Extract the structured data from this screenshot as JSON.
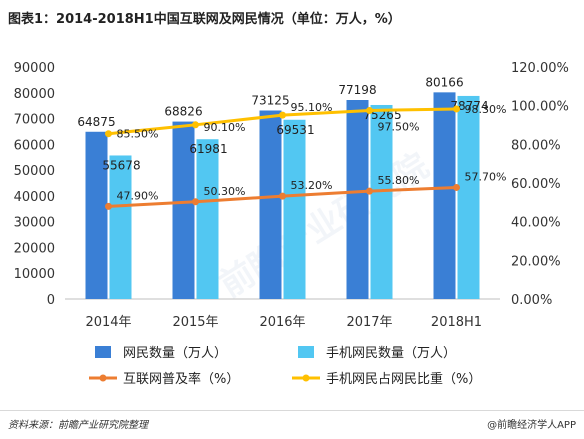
{
  "title": "图表1：2014-2018H1中国互联网及网民情况（单位：万人，%）",
  "source": "资料来源：前瞻产业研究院整理",
  "publisher": "@前瞻经济学人APP",
  "watermark": "前瞻产业研究院",
  "chart_data": {
    "type": "bar",
    "categories": [
      "2014年",
      "2015年",
      "2016年",
      "2017年",
      "2018H1"
    ],
    "left_axis": {
      "ylim": [
        0,
        90000
      ],
      "ticks": [
        "0",
        "10000",
        "20000",
        "30000",
        "40000",
        "50000",
        "60000",
        "70000",
        "80000",
        "90000"
      ]
    },
    "right_axis": {
      "ylim": [
        0,
        120
      ],
      "ticks": [
        "0.00%",
        "20.00%",
        "40.00%",
        "60.00%",
        "80.00%",
        "100.00%",
        "120.00%"
      ]
    },
    "bar_series": [
      {
        "name": "网民数量（万人）",
        "color": "#3a7fd5",
        "values": [
          64875,
          68826,
          73125,
          77198,
          80166
        ],
        "labels": [
          "64875",
          "68826",
          "73125",
          "77198",
          "80166"
        ]
      },
      {
        "name": "手机网民数量（万人）",
        "color": "#52c7f2",
        "values": [
          55678,
          61981,
          69531,
          75265,
          78774
        ],
        "labels": [
          "55678",
          "61981",
          "69531",
          "75265",
          "78774"
        ]
      }
    ],
    "line_series": [
      {
        "name": "互联网普及率（%）",
        "color": "#ed7d31",
        "values": [
          47.9,
          50.3,
          53.2,
          55.8,
          57.7
        ],
        "labels": [
          "47.90%",
          "50.30%",
          "53.20%",
          "55.80%",
          "57.70%"
        ]
      },
      {
        "name": "手机网民占网民比重（%）",
        "color": "#ffc000",
        "values": [
          85.5,
          90.1,
          95.1,
          97.5,
          98.3
        ],
        "labels": [
          "85.50%",
          "90.10%",
          "95.10%",
          "97.50%",
          "98.30%"
        ]
      }
    ],
    "legend_position": "bottom",
    "grid": false
  }
}
